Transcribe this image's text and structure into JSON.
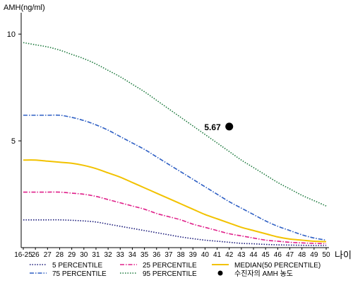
{
  "chart_data": {
    "type": "line",
    "ylabel": "AMH(ng/ml)",
    "xlabel": "나이",
    "ylim": [
      0,
      11
    ],
    "x_ticks": [
      "16-25",
      "26",
      "27",
      "28",
      "29",
      "30",
      "31",
      "32",
      "33",
      "34",
      "35",
      "36",
      "37",
      "38",
      "39",
      "40",
      "41",
      "42",
      "43",
      "44",
      "45",
      "46",
      "47",
      "48",
      "49",
      "50"
    ],
    "y_ticks": [
      5,
      10
    ],
    "grid": false,
    "series": [
      {
        "name": "5 PERCENTILE",
        "color": "#1a1a7a",
        "style": "dotted",
        "values": [
          1.3,
          1.3,
          1.3,
          1.3,
          1.28,
          1.25,
          1.2,
          1.1,
          1.0,
          0.9,
          0.8,
          0.7,
          0.6,
          0.5,
          0.42,
          0.35,
          0.3,
          0.25,
          0.2,
          0.18,
          0.15,
          0.13,
          0.12,
          0.11,
          0.1,
          0.1
        ]
      },
      {
        "name": "25 PERCENTILE",
        "color": "#e0208a",
        "style": "dashdot",
        "values": [
          2.6,
          2.6,
          2.6,
          2.6,
          2.55,
          2.5,
          2.4,
          2.25,
          2.1,
          1.95,
          1.8,
          1.6,
          1.45,
          1.3,
          1.1,
          0.95,
          0.8,
          0.65,
          0.55,
          0.45,
          0.35,
          0.3,
          0.25,
          0.22,
          0.2,
          0.18
        ]
      },
      {
        "name": "MEDIAN(50 PERCENTILE)",
        "color": "#f2c200",
        "style": "solid",
        "values": [
          4.1,
          4.1,
          4.05,
          4.0,
          3.95,
          3.85,
          3.7,
          3.5,
          3.3,
          3.05,
          2.8,
          2.55,
          2.3,
          2.05,
          1.8,
          1.55,
          1.35,
          1.15,
          0.95,
          0.8,
          0.65,
          0.5,
          0.4,
          0.35,
          0.3,
          0.28
        ]
      },
      {
        "name": "75 PERCENTILE",
        "color": "#2e5fc4",
        "style": "dashdot",
        "values": [
          6.2,
          6.2,
          6.2,
          6.2,
          6.1,
          5.95,
          5.75,
          5.5,
          5.2,
          4.9,
          4.6,
          4.25,
          3.9,
          3.55,
          3.2,
          2.85,
          2.5,
          2.15,
          1.85,
          1.55,
          1.25,
          1.0,
          0.8,
          0.6,
          0.45,
          0.35
        ]
      },
      {
        "name": "95 PERCENTILE",
        "color": "#1e7a3e",
        "style": "dotted",
        "values": [
          9.6,
          9.5,
          9.4,
          9.25,
          9.05,
          8.85,
          8.6,
          8.3,
          8.0,
          7.65,
          7.3,
          6.9,
          6.5,
          6.1,
          5.7,
          5.3,
          4.9,
          4.5,
          4.1,
          3.75,
          3.4,
          3.05,
          2.75,
          2.45,
          2.2,
          1.95
        ]
      }
    ],
    "marker": {
      "name": "수진자의 AMH 농도",
      "x": "42",
      "y": 5.67,
      "label": "5.67"
    },
    "legend_position": "bottom"
  }
}
